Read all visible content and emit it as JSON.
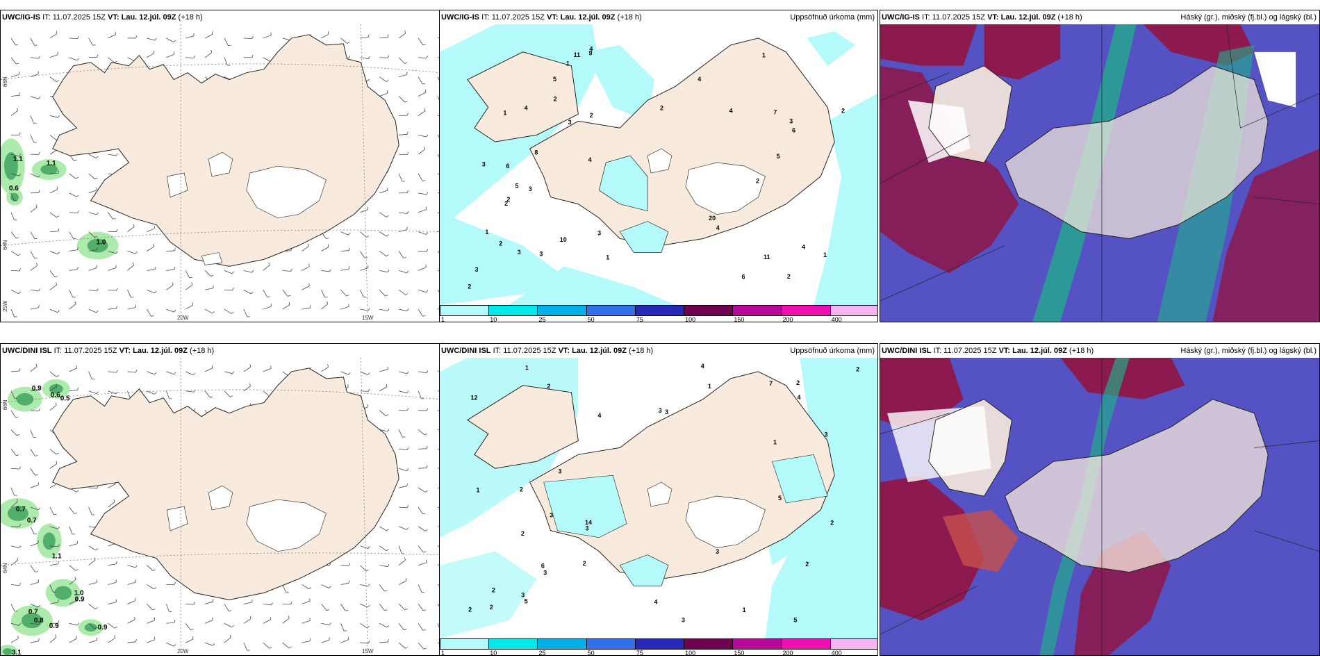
{
  "rows": [
    {
      "model": "UWC/IG-IS",
      "it_label": "IT:",
      "it": "11.07.2025 15Z",
      "vt_label": "VT:",
      "vt": "Lau. 12.júl. 09Z",
      "lead": "(+18 h)",
      "wind_values": [
        "1.1",
        "1.1",
        "0.6",
        "1.0"
      ],
      "precip_values": [
        "2",
        "1",
        "2",
        "3",
        "4",
        "5",
        "1",
        "2",
        "3",
        "6",
        "4",
        "11",
        "11",
        "10",
        "7",
        "4",
        "4",
        "3",
        "6",
        "4",
        "2",
        "5",
        "3",
        "3",
        "9",
        "4",
        "5",
        "8",
        "1",
        "1",
        "2",
        "20",
        "6",
        "2",
        "2",
        "2",
        "2",
        "1",
        "1",
        "3",
        "2",
        "3",
        "4",
        "3"
      ]
    },
    {
      "model": "UWC/DINI ISL",
      "it_label": "IT:",
      "it": "11.07.2025 15Z",
      "vt_label": "VT:",
      "vt": "Lau. 12.júl. 09Z",
      "lead": "(+18 h)",
      "wind_values": [
        "0.9",
        "0.6",
        "0.5",
        "0.7",
        "0.7",
        "1.1",
        "1.0",
        "0.9",
        "0.7",
        "0.8",
        "0.9",
        "0.9",
        "3.1"
      ],
      "precip_values": [
        "3",
        "4",
        "3",
        "12",
        "5",
        "4",
        "2",
        "3",
        "2",
        "7",
        "1",
        "2",
        "1",
        "6",
        "14",
        "2",
        "3",
        "2",
        "2",
        "3",
        "2",
        "3",
        "4",
        "5",
        "2",
        "1",
        "2",
        "3",
        "4",
        "3",
        "5",
        "1",
        "1",
        "2",
        "3",
        "2",
        "3"
      ]
    }
  ],
  "precip_title": "Uppsöfnuð úrkoma (mm)",
  "cloud_title": "Háský (gr.), miðský (fj.bl.) og lágský (bl.)",
  "colorbar": {
    "ticks": [
      "1",
      "10",
      "25",
      "50",
      "75",
      "100",
      "150",
      "200",
      "400"
    ],
    "colors": [
      "#b4fafa",
      "#00e8e8",
      "#00b0e8",
      "#3070e8",
      "#2828b8",
      "#700050",
      "#b8089a",
      "#f010b0",
      "#f4b4f0"
    ]
  },
  "axes": {
    "lat_labels": [
      "66N",
      "64N"
    ],
    "lon_labels": [
      "25W",
      "20W",
      "15W"
    ]
  },
  "colors": {
    "land": "#f8ebdd",
    "rain": "#b4fafa",
    "wind_green": "#9fe89f",
    "cloud_high": "#1fb28a",
    "cloud_mid": "#8c1a4e",
    "cloud_low": "#5552c4"
  }
}
